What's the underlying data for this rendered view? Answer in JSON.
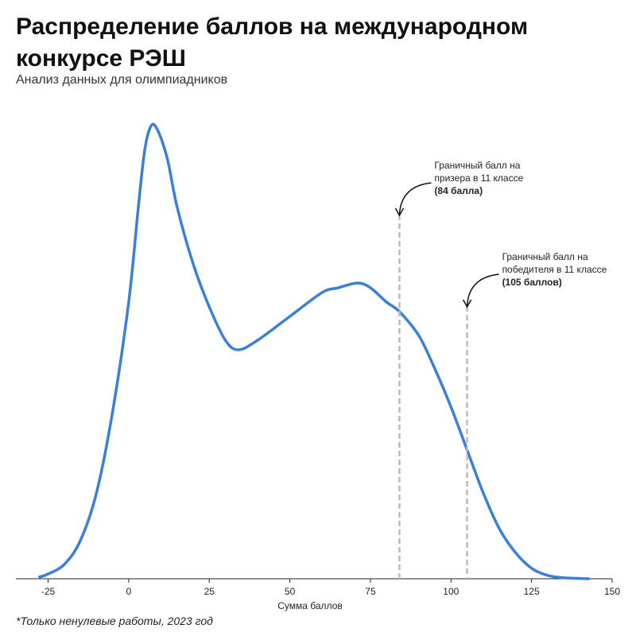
{
  "chart_data": {
    "type": "line",
    "title": "Распределение баллов на международном конкурсе РЭШ",
    "subtitle": "Анализ данных для олимпиадников",
    "x_label": "Сумма баллов",
    "footnote": "*Только ненулевые работы, 2023 год",
    "x": [
      -28,
      -25,
      -20,
      -15,
      -10,
      -5,
      0,
      3,
      5,
      7,
      9,
      12,
      15,
      20,
      25,
      30,
      34,
      40,
      50,
      60,
      65,
      71,
      75,
      80,
      84,
      90,
      95,
      100,
      105,
      110,
      115,
      120,
      125,
      130,
      135,
      143
    ],
    "series": [
      {
        "color": "#3a7fd8",
        "values": [
          0.003,
          0.01,
          0.03,
          0.08,
          0.18,
          0.35,
          0.58,
          0.78,
          0.9,
          0.95,
          0.94,
          0.88,
          0.78,
          0.66,
          0.57,
          0.5,
          0.48,
          0.5,
          0.55,
          0.6,
          0.61,
          0.62,
          0.61,
          0.58,
          0.56,
          0.51,
          0.44,
          0.36,
          0.27,
          0.18,
          0.105,
          0.055,
          0.022,
          0.007,
          0.002,
          0
        ]
      }
    ],
    "xlim": [
      -35,
      150
    ],
    "xticks": [
      -25,
      0,
      25,
      50,
      75,
      100,
      125,
      150
    ],
    "ylim": [
      0,
      1
    ],
    "thresholds": [
      {
        "x": 84,
        "lines": [
          "Граничный балл на",
          "призера в 11 классе"
        ],
        "bold": "(84 балла)"
      },
      {
        "x": 105,
        "lines": [
          "Граничный балл на",
          "победителя в 11 классе"
        ],
        "bold": "(105 баллов)"
      }
    ]
  }
}
